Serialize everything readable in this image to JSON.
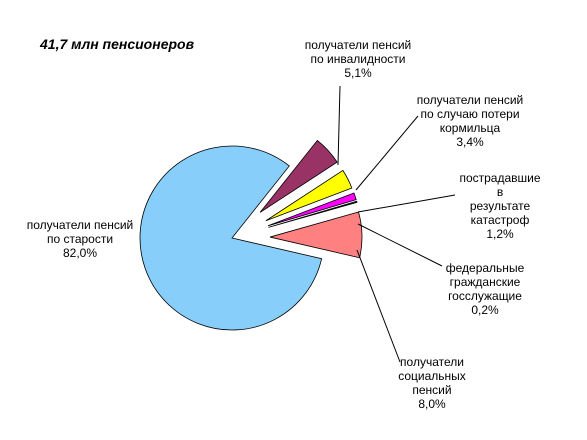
{
  "chart_data": {
    "type": "pie",
    "title": "41,7 млн пенсионеров",
    "categories": [
      "получатели пенсий\nпо старости",
      "получатели пенсий\nпо инвалидности",
      "получатели пенсий\nпо случаю потери\nкормильца",
      "пострадавшие в\nрезультате\nкатастроф",
      "федеральные\nгражданские\nгосслужащие",
      "получатели\nсоциальных\nпенсий"
    ],
    "values": [
      82.0,
      5.1,
      3.4,
      1.2,
      0.2,
      8.0
    ],
    "value_labels": [
      "82,0%",
      "5,1%",
      "3,4%",
      "1,2%",
      "0,2%",
      "8,0%"
    ],
    "colors": [
      "#87cefa",
      "#993366",
      "#ffff00",
      "#ff00ff",
      "#333399",
      "#ff8080"
    ]
  }
}
